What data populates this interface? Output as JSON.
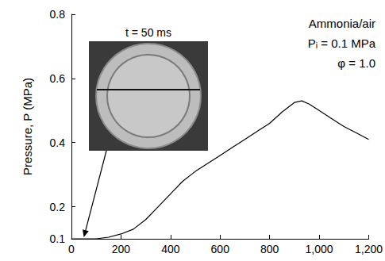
{
  "chart_data": {
    "type": "line",
    "y_label": "Pressure, P (MPa)",
    "texts": [
      "Ammonia/air",
      "Pᵢ = 0.1 MPa",
      "φ = 1.0"
    ],
    "annotations": [
      {
        "text": "t = 50 ms",
        "x": 50,
        "y": 0.1
      }
    ],
    "x": [
      0,
      100,
      150,
      200,
      250,
      300,
      350,
      400,
      450,
      500,
      550,
      600,
      650,
      700,
      750,
      800,
      850,
      900,
      930,
      960,
      1000,
      1050,
      1100,
      1150,
      1200
    ],
    "values": [
      0.1,
      0.1,
      0.105,
      0.115,
      0.13,
      0.16,
      0.2,
      0.24,
      0.28,
      0.31,
      0.335,
      0.36,
      0.385,
      0.41,
      0.435,
      0.46,
      0.495,
      0.525,
      0.53,
      0.52,
      0.5,
      0.475,
      0.45,
      0.43,
      0.41
    ],
    "color": "#000000",
    "xlim": [
      0,
      1200
    ],
    "xticks": [
      0,
      200,
      400,
      600,
      800,
      1000,
      1200
    ],
    "ylim": [
      0.1,
      0.8
    ],
    "yticks": [
      0.1,
      0.2,
      0.4,
      0.6,
      0.8
    ],
    "grid": false
  }
}
